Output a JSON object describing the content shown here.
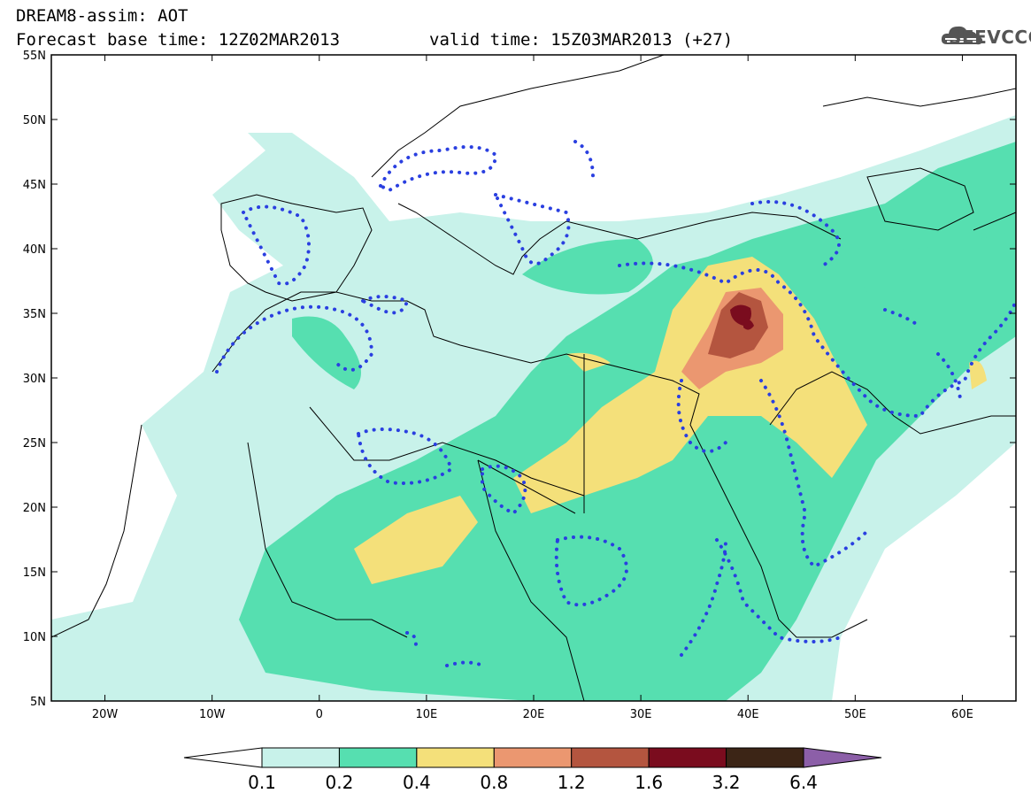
{
  "header": {
    "title": "DREAM8-assim: AOT",
    "base_time": "Forecast base time: 12Z02MAR2013",
    "valid_time": "valid time: 15Z03MAR2013 (+27)"
  },
  "logo": {
    "text": "SEEVCCC",
    "icon": "cloud-icon"
  },
  "map": {
    "lat_labels": [
      "55N",
      "50N",
      "45N",
      "40N",
      "35N",
      "30N",
      "25N",
      "20N",
      "15N",
      "10N",
      "5N"
    ],
    "lon_labels": [
      "20W",
      "10W",
      "0",
      "10E",
      "20E",
      "30E",
      "40E",
      "50E",
      "60E"
    ],
    "lat_range": [
      5,
      55
    ],
    "lon_range": [
      -25,
      65
    ],
    "contour_color": "#2a3fe0"
  },
  "colorbar": {
    "levels": [
      "0.1",
      "0.2",
      "0.4",
      "0.8",
      "1.2",
      "1.6",
      "3.2",
      "6.4"
    ],
    "colors": [
      "#ffffff",
      "#c8f2ea",
      "#56dfb0",
      "#f4e07a",
      "#eb9770",
      "#b4553f",
      "#7a0c1e",
      "#3c2516",
      "#8c5fa8"
    ]
  }
}
